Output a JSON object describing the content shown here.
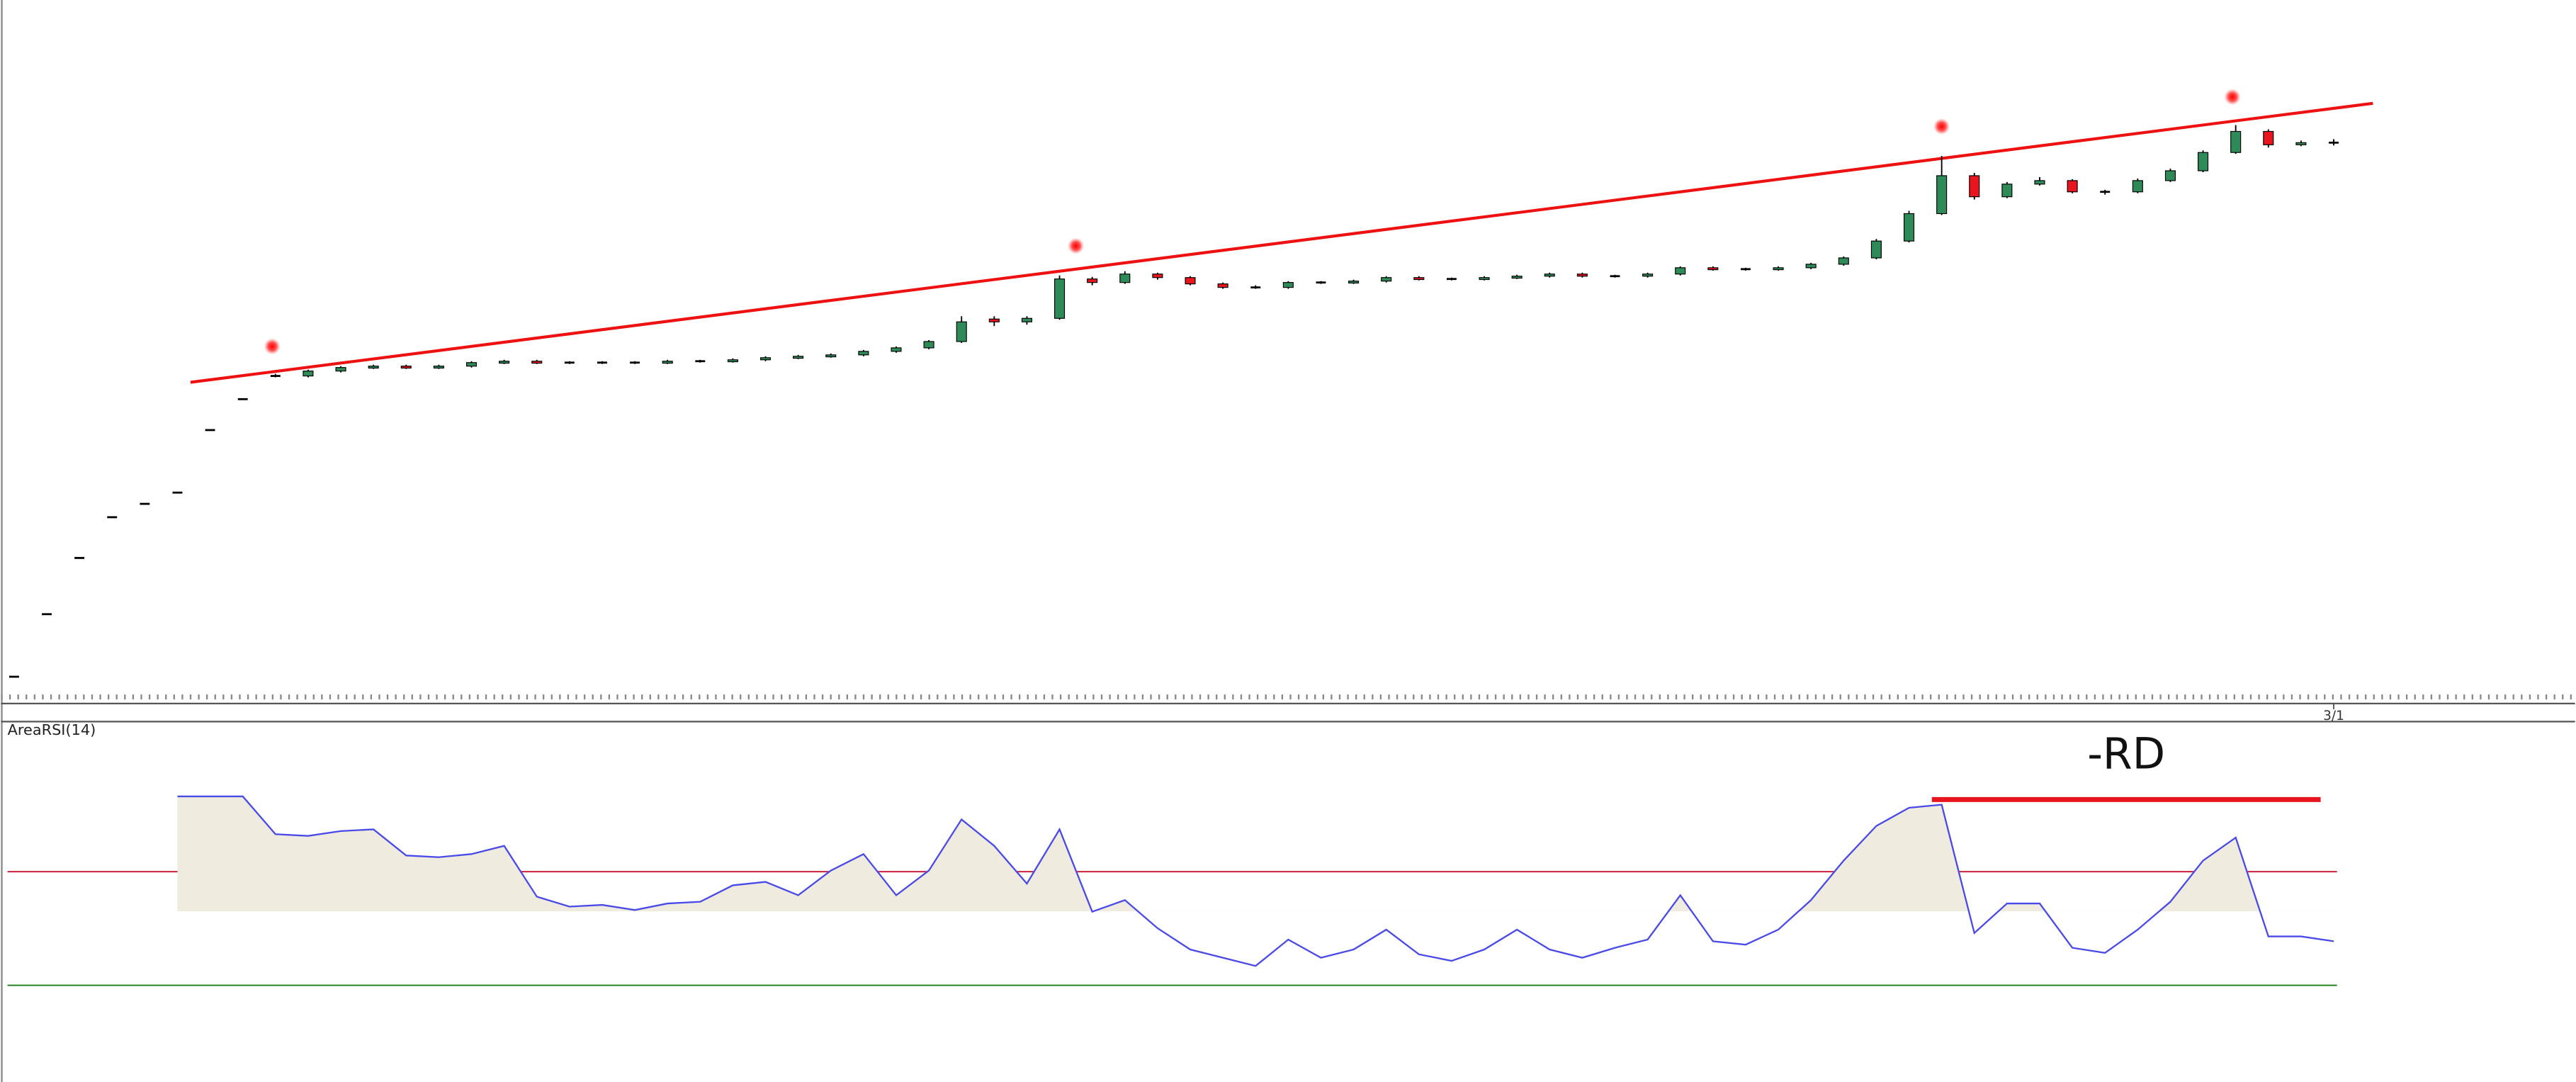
{
  "chart_data": [
    {
      "type": "candlestick",
      "candles": [
        [
          3.7,
          3.7,
          3.7,
          3.7
        ],
        [
          12.6,
          12.6,
          12.6,
          12.6
        ],
        [
          20.6,
          20.6,
          20.6,
          20.6
        ],
        [
          26.4,
          26.4,
          26.4,
          26.4
        ],
        [
          28.3,
          28.3,
          28.3,
          28.3
        ],
        [
          29.9,
          29.9,
          29.9,
          29.9
        ],
        [
          38.8,
          38.8,
          38.8,
          38.8
        ],
        [
          43.2,
          43.2,
          43.2,
          43.2
        ],
        [
          46.5,
          46.8,
          46.3,
          46.5
        ],
        [
          46.5,
          47.4,
          46.3,
          47.2
        ],
        [
          47.2,
          47.9,
          47.0,
          47.7
        ],
        [
          47.7,
          48.1,
          47.5,
          47.9
        ],
        [
          47.9,
          48.1,
          47.5,
          47.7
        ],
        [
          47.7,
          48.1,
          47.5,
          47.9
        ],
        [
          47.9,
          48.6,
          47.7,
          48.4
        ],
        [
          48.4,
          48.8,
          48.2,
          48.6
        ],
        [
          48.6,
          48.8,
          48.2,
          48.4
        ],
        [
          48.4,
          48.6,
          48.2,
          48.4
        ],
        [
          48.4,
          48.6,
          48.2,
          48.4
        ],
        [
          48.4,
          48.6,
          48.2,
          48.4
        ],
        [
          48.4,
          48.8,
          48.2,
          48.6
        ],
        [
          48.6,
          48.8,
          48.4,
          48.6
        ],
        [
          48.6,
          49.0,
          48.4,
          48.8
        ],
        [
          48.8,
          49.3,
          48.6,
          49.1
        ],
        [
          49.1,
          49.5,
          48.9,
          49.3
        ],
        [
          49.3,
          49.7,
          49.1,
          49.5
        ],
        [
          49.5,
          50.2,
          49.3,
          50.0
        ],
        [
          50.0,
          50.7,
          49.8,
          50.5
        ],
        [
          50.5,
          51.6,
          50.3,
          51.4
        ],
        [
          51.4,
          55.0,
          51.2,
          54.2
        ],
        [
          54.6,
          55.0,
          53.6,
          54.2
        ],
        [
          54.2,
          55.0,
          53.8,
          54.7
        ],
        [
          54.7,
          60.8,
          54.5,
          60.3
        ],
        [
          60.3,
          60.6,
          59.4,
          59.8
        ],
        [
          59.8,
          61.4,
          59.6,
          61.0
        ],
        [
          61.0,
          61.2,
          60.2,
          60.5
        ],
        [
          60.5,
          60.7,
          59.4,
          59.6
        ],
        [
          59.6,
          59.8,
          58.9,
          59.1
        ],
        [
          59.1,
          59.4,
          58.9,
          59.1
        ],
        [
          59.1,
          60.0,
          58.9,
          59.8
        ],
        [
          59.8,
          60.0,
          59.6,
          59.8
        ],
        [
          59.8,
          60.2,
          59.6,
          60.0
        ],
        [
          60.0,
          60.7,
          59.8,
          60.5
        ],
        [
          60.5,
          60.7,
          60.1,
          60.3
        ],
        [
          60.3,
          60.5,
          60.1,
          60.3
        ],
        [
          60.3,
          60.7,
          60.1,
          60.5
        ],
        [
          60.5,
          60.9,
          60.3,
          60.7
        ],
        [
          60.7,
          61.2,
          60.5,
          61.0
        ],
        [
          61.0,
          61.2,
          60.5,
          60.7
        ],
        [
          60.7,
          60.9,
          60.5,
          60.7
        ],
        [
          60.7,
          61.2,
          60.5,
          61.0
        ],
        [
          61.0,
          62.1,
          60.8,
          61.9
        ],
        [
          61.9,
          62.1,
          61.5,
          61.7
        ],
        [
          61.7,
          61.9,
          61.5,
          61.7
        ],
        [
          61.7,
          62.1,
          61.5,
          61.9
        ],
        [
          61.9,
          62.6,
          61.7,
          62.4
        ],
        [
          62.4,
          63.5,
          62.2,
          63.3
        ],
        [
          63.3,
          66.0,
          63.1,
          65.7
        ],
        [
          65.7,
          70.0,
          65.5,
          69.6
        ],
        [
          69.6,
          77.8,
          69.4,
          75.0
        ],
        [
          75.0,
          75.4,
          71.6,
          72.0
        ],
        [
          72.0,
          74.1,
          71.8,
          73.8
        ],
        [
          73.8,
          74.8,
          73.6,
          74.3
        ],
        [
          74.3,
          74.5,
          72.5,
          72.7
        ],
        [
          72.7,
          73.0,
          72.3,
          72.7
        ],
        [
          72.7,
          74.6,
          72.5,
          74.3
        ],
        [
          74.3,
          76.0,
          74.1,
          75.7
        ],
        [
          75.7,
          78.6,
          75.5,
          78.3
        ],
        [
          78.3,
          82.2,
          78.1,
          81.3
        ],
        [
          81.3,
          81.6,
          79.0,
          79.4
        ],
        [
          79.4,
          80.0,
          79.2,
          79.7
        ],
        [
          79.7,
          80.2,
          79.3,
          79.7
        ]
      ],
      "color_up": "#2e8b57",
      "color_down": "#e8141e",
      "xlim": [
        0,
        71
      ],
      "ylim": [
        0,
        100
      ],
      "xticks": [
        {
          "value": 71,
          "label": "3/1"
        }
      ],
      "trendline": {
        "x": [
          5.4,
          72.2
        ],
        "y": [
          45.6,
          85.3
        ],
        "color": "#ee1111"
      },
      "markers": {
        "x": [
          7.9,
          32.5,
          59.0,
          67.9
        ],
        "y": [
          50.7,
          65.0,
          82.0,
          86.2
        ],
        "color": "#ff0000"
      }
    },
    {
      "type": "area-line",
      "title": "AreaRSI(14)",
      "values": [
        null,
        null,
        null,
        null,
        null,
        96.5,
        96.5,
        96.5,
        83.2,
        82.6,
        84.3,
        84.9,
        75.7,
        75.1,
        76.2,
        79.1,
        61.2,
        57.7,
        58.3,
        56.5,
        58.8,
        59.4,
        65.2,
        66.4,
        61.7,
        70.4,
        76.2,
        61.7,
        70.4,
        88.4,
        79.1,
        65.8,
        84.9,
        55.9,
        60.0,
        50.1,
        42.6,
        39.7,
        36.8,
        46.1,
        39.7,
        42.6,
        49.6,
        40.9,
        38.6,
        42.6,
        49.6,
        42.6,
        39.7,
        43.2,
        46.1,
        61.7,
        45.5,
        44.3,
        49.6,
        60.0,
        73.9,
        86.1,
        92.5,
        93.6,
        48.4,
        58.8,
        58.8,
        43.2,
        41.4,
        49.6,
        59.4,
        73.9,
        82.0,
        47.2,
        47.2,
        45.5
      ],
      "color": "#4a4ae8",
      "fill": "#efebdf",
      "area_base": 56,
      "xlim": [
        0,
        71
      ],
      "ylim": [
        0,
        100
      ],
      "levels": [
        {
          "value": 70,
          "color": "#c8102e"
        },
        {
          "value": 30,
          "color": "#1a7a1a"
        }
      ],
      "annotation": {
        "label": "-RD",
        "x": [
          58.7,
          70.6
        ],
        "y": 95.4,
        "color": "#e8141e"
      }
    }
  ]
}
